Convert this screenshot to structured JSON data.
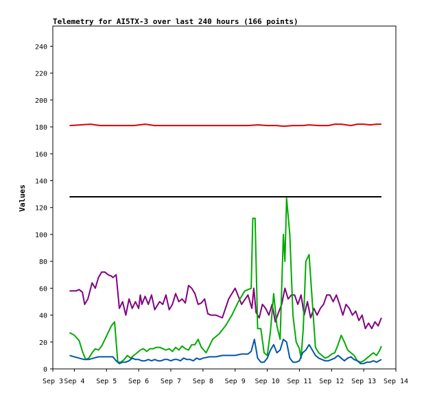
{
  "chart_data": {
    "type": "line",
    "title": "Telemetry for AI5TX-3 over last 240 hours (166 points)",
    "ylabel": "Values",
    "xlabel": "",
    "xlim": [
      3.33,
      14.0
    ],
    "ylim": [
      0,
      255
    ],
    "xticks": [
      3.33,
      4,
      5,
      6,
      7,
      8,
      9,
      10,
      11,
      12,
      13,
      14
    ],
    "xtick_labels": [
      "Sep 3",
      "Sep 4",
      "Sep 5",
      "Sep 6",
      "Sep 7",
      "Sep 8",
      "Sep 9",
      "Sep 10",
      "Sep 11",
      "Sep 12",
      "Sep 13",
      "Sep 14"
    ],
    "yticks": [
      0,
      20,
      40,
      60,
      80,
      100,
      120,
      140,
      160,
      180,
      200,
      220,
      240
    ],
    "grid": false,
    "series": [
      {
        "color": "#dd0000",
        "x": [
          3.85,
          4.2,
          4.5,
          4.8,
          5.0,
          5.3,
          5.6,
          5.85,
          6.2,
          6.5,
          6.8,
          7.0,
          7.3,
          7.6,
          7.9,
          8.2,
          8.5,
          8.8,
          9.1,
          9.4,
          9.7,
          10.0,
          10.3,
          10.5,
          10.8,
          11.1,
          11.3,
          11.6,
          11.9,
          12.1,
          12.3,
          12.6,
          12.8,
          13.0,
          13.2,
          13.4,
          13.55
        ],
        "y": [
          181,
          181.5,
          182,
          181,
          181,
          181,
          181,
          181,
          182,
          181,
          181,
          181,
          181,
          181,
          181,
          181,
          181,
          181,
          181,
          181,
          181.5,
          181,
          181,
          180.5,
          181,
          181,
          181.5,
          181,
          181,
          182,
          182,
          181,
          182,
          182,
          181.5,
          182,
          182
        ]
      },
      {
        "color": "#000000",
        "x": [
          3.85,
          13.55
        ],
        "y": [
          128,
          128
        ]
      },
      {
        "color": "#800080",
        "x": [
          3.85,
          4.05,
          4.15,
          4.25,
          4.32,
          4.42,
          4.55,
          4.65,
          4.75,
          4.85,
          4.95,
          5.05,
          5.15,
          5.2,
          5.3,
          5.4,
          5.5,
          5.6,
          5.7,
          5.8,
          5.9,
          6.0,
          6.05,
          6.1,
          6.2,
          6.3,
          6.4,
          6.5,
          6.65,
          6.75,
          6.85,
          6.95,
          7.05,
          7.15,
          7.25,
          7.35,
          7.45,
          7.55,
          7.65,
          7.75,
          7.85,
          7.95,
          8.05,
          8.15,
          8.25,
          8.4,
          8.6,
          8.8,
          9.0,
          9.2,
          9.4,
          9.52,
          9.58,
          9.65,
          9.75,
          9.85,
          9.95,
          10.05,
          10.15,
          10.25,
          10.35,
          10.45,
          10.55,
          10.65,
          10.75,
          10.85,
          10.95,
          11.05,
          11.15,
          11.25,
          11.35,
          11.45,
          11.55,
          11.65,
          11.75,
          11.85,
          11.95,
          12.05,
          12.15,
          12.25,
          12.35,
          12.45,
          12.55,
          12.65,
          12.75,
          12.85,
          12.95,
          13.05,
          13.15,
          13.25,
          13.35,
          13.45,
          13.55
        ],
        "y": [
          58,
          58,
          59,
          57,
          48,
          52,
          64,
          60,
          68,
          72,
          72,
          70,
          69,
          68,
          70,
          45,
          50,
          40,
          52,
          45,
          50,
          45,
          55,
          48,
          54,
          48,
          55,
          44,
          50,
          48,
          55,
          44,
          48,
          56,
          50,
          52,
          49,
          62,
          60,
          56,
          48,
          49,
          52,
          41,
          40,
          40,
          38,
          52,
          60,
          48,
          55,
          45,
          60,
          42,
          38,
          48,
          45,
          40,
          48,
          35,
          42,
          48,
          60,
          52,
          55,
          55,
          48,
          55,
          40,
          50,
          38,
          45,
          40,
          45,
          48,
          55,
          55,
          50,
          55,
          48,
          40,
          48,
          45,
          40,
          43,
          36,
          40,
          30,
          34,
          30,
          35,
          32,
          38
        ]
      },
      {
        "color": "#00aa00",
        "x": [
          3.85,
          4.0,
          4.15,
          4.25,
          4.35,
          4.45,
          4.55,
          4.65,
          4.75,
          4.85,
          4.95,
          5.05,
          5.15,
          5.25,
          5.35,
          5.45,
          5.55,
          5.65,
          5.75,
          5.85,
          5.95,
          6.05,
          6.15,
          6.25,
          6.35,
          6.45,
          6.55,
          6.65,
          6.75,
          6.85,
          6.95,
          7.05,
          7.15,
          7.25,
          7.35,
          7.45,
          7.55,
          7.65,
          7.75,
          7.85,
          7.95,
          8.1,
          8.3,
          8.5,
          8.7,
          8.9,
          9.1,
          9.3,
          9.5,
          9.55,
          9.62,
          9.7,
          9.8,
          9.9,
          10.0,
          10.1,
          10.2,
          10.3,
          10.4,
          10.5,
          10.55,
          10.6,
          10.7,
          10.8,
          10.9,
          11.0,
          11.05,
          11.12,
          11.2,
          11.3,
          11.4,
          11.5,
          11.6,
          11.7,
          11.8,
          11.9,
          12.0,
          12.1,
          12.2,
          12.3,
          12.4,
          12.5,
          12.6,
          12.7,
          12.8,
          12.9,
          13.0,
          13.1,
          13.2,
          13.3,
          13.4,
          13.5,
          13.55
        ],
        "y": [
          27,
          25,
          21,
          13,
          7,
          8,
          12,
          15,
          14,
          17,
          22,
          27,
          32,
          35,
          5,
          5,
          7,
          10,
          8,
          10,
          12,
          14,
          15,
          13,
          15,
          15,
          16,
          16,
          15,
          14,
          15,
          13,
          16,
          14,
          17,
          15,
          14,
          18,
          18,
          22,
          16,
          12,
          22,
          26,
          32,
          40,
          50,
          58,
          60,
          112,
          112,
          30,
          30,
          12,
          10,
          28,
          56,
          32,
          22,
          100,
          80,
          127,
          100,
          40,
          20,
          15,
          8,
          30,
          80,
          85,
          50,
          16,
          12,
          10,
          8,
          9,
          11,
          12,
          18,
          25,
          20,
          14,
          12,
          10,
          6,
          5,
          6,
          8,
          10,
          12,
          10,
          14,
          17
        ]
      },
      {
        "color": "#0055aa",
        "x": [
          3.85,
          4.0,
          4.15,
          4.3,
          4.45,
          4.6,
          4.75,
          4.9,
          5.0,
          5.1,
          5.2,
          5.3,
          5.4,
          5.5,
          5.6,
          5.7,
          5.8,
          5.9,
          6.0,
          6.1,
          6.2,
          6.3,
          6.4,
          6.5,
          6.6,
          6.7,
          6.8,
          6.9,
          7.0,
          7.1,
          7.2,
          7.3,
          7.4,
          7.5,
          7.6,
          7.7,
          7.8,
          7.9,
          8.0,
          8.2,
          8.4,
          8.6,
          8.8,
          9.0,
          9.2,
          9.4,
          9.5,
          9.6,
          9.7,
          9.8,
          9.9,
          10.0,
          10.1,
          10.2,
          10.3,
          10.4,
          10.5,
          10.6,
          10.7,
          10.8,
          10.9,
          11.0,
          11.1,
          11.2,
          11.3,
          11.4,
          11.5,
          11.6,
          11.7,
          11.8,
          11.9,
          12.0,
          12.1,
          12.2,
          12.3,
          12.4,
          12.5,
          12.6,
          12.7,
          12.8,
          12.9,
          13.0,
          13.1,
          13.2,
          13.3,
          13.4,
          13.55
        ],
        "y": [
          10,
          9,
          8,
          7,
          7,
          8,
          9,
          9,
          9,
          9,
          9,
          6,
          4,
          5,
          5,
          6,
          8,
          7,
          7,
          6,
          6,
          7,
          6,
          7,
          6,
          6,
          7,
          7,
          6,
          7,
          7,
          6,
          8,
          7,
          7,
          6,
          8,
          7,
          8,
          9,
          9,
          10,
          10,
          10,
          11,
          11,
          13,
          22,
          8,
          5,
          5,
          8,
          14,
          18,
          12,
          14,
          22,
          20,
          8,
          5,
          5,
          6,
          12,
          14,
          18,
          14,
          10,
          8,
          7,
          6,
          6,
          7,
          8,
          10,
          8,
          6,
          8,
          9,
          7,
          6,
          4,
          4,
          5,
          5,
          6,
          5,
          7
        ]
      }
    ]
  }
}
